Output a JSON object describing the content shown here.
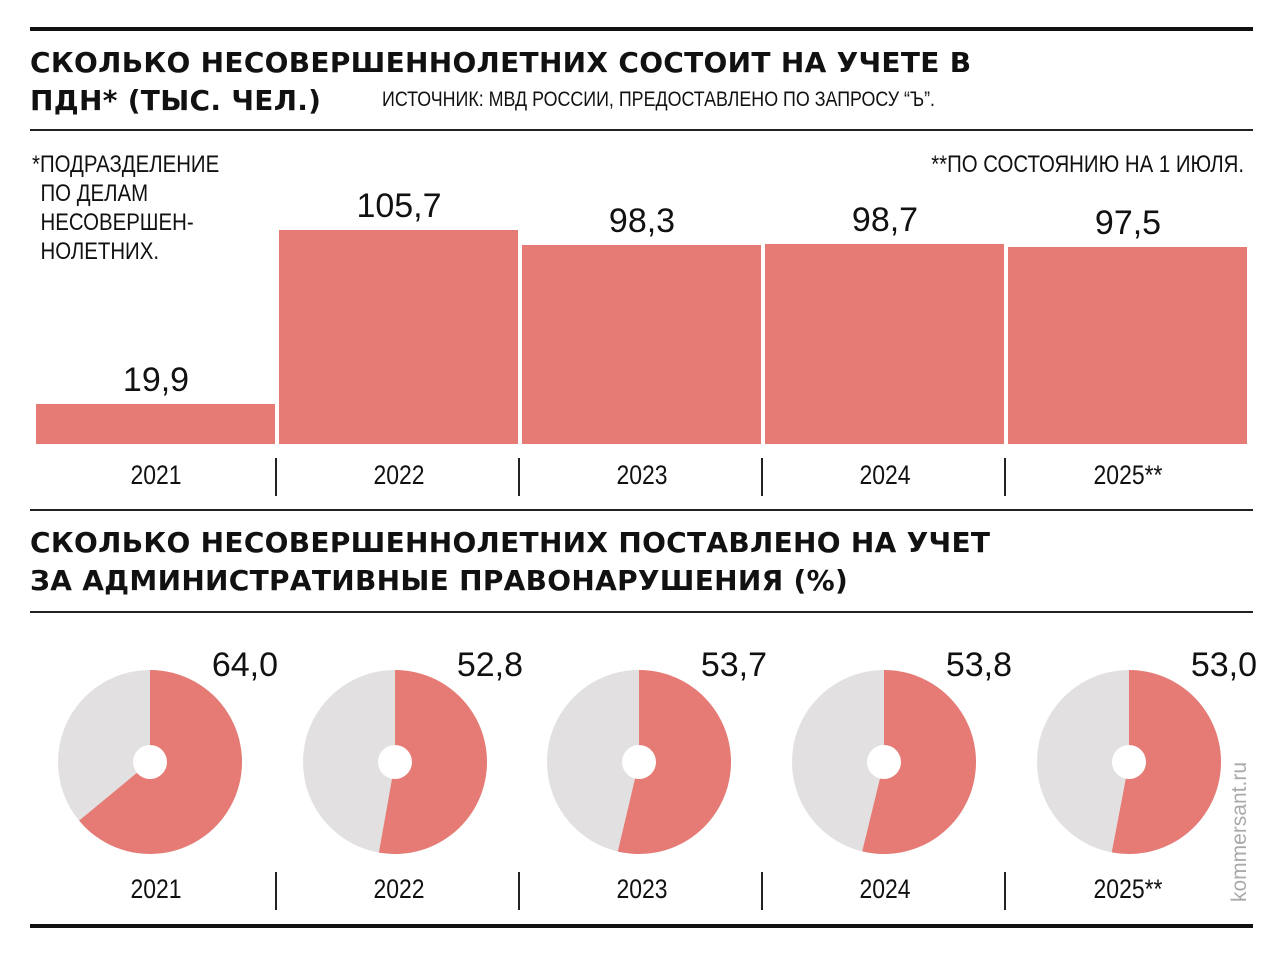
{
  "colors": {
    "accent": "#e67b75",
    "remainder": "#e2e0e0",
    "text": "#111111"
  },
  "chart_data": [
    {
      "type": "bar",
      "title": "СКОЛЬКО НЕСОВЕРШЕННОЛЕТНИХ СОСТОИТ НА УЧЕТЕ В ПДН* (ТЫС. ЧЕЛ.)",
      "source": "ИСТОЧНИК: МВД РОССИИ, ПРЕДОСТАВЛЕНО ПО ЗАПРОСУ “Ъ”.",
      "categories": [
        "2021",
        "2022",
        "2023",
        "2024",
        "2025**"
      ],
      "values": [
        19.9,
        105.7,
        98.3,
        98.7,
        97.5
      ],
      "value_labels": [
        "19,9",
        "105,7",
        "98,3",
        "98,7",
        "97,5"
      ],
      "notes": [
        "*ПОДРАЗДЕЛЕНИЕ",
        "ПО ДЕЛАМ",
        "НЕСОВЕРШЕН-",
        "НОЛЕТНИХ."
      ],
      "footnote": "**ПО СОСТОЯНИЮ НА 1 ИЮЛЯ."
    },
    {
      "type": "pie",
      "title": [
        "СКОЛЬКО НЕСОВЕРШЕННОЛЕТНИХ ПОСТАВЛЕНО НА УЧЕТ",
        "ЗА АДМИНИСТРАТИВНЫЕ ПРАВОНАРУШЕНИЯ (%)"
      ],
      "categories": [
        "2021",
        "2022",
        "2023",
        "2024",
        "2025**"
      ],
      "values": [
        64.0,
        52.8,
        53.7,
        53.8,
        53.0
      ],
      "value_labels": [
        "64,0",
        "52,8",
        "53,7",
        "53,8",
        "53,0"
      ]
    }
  ],
  "watermark": "kommersant.ru"
}
